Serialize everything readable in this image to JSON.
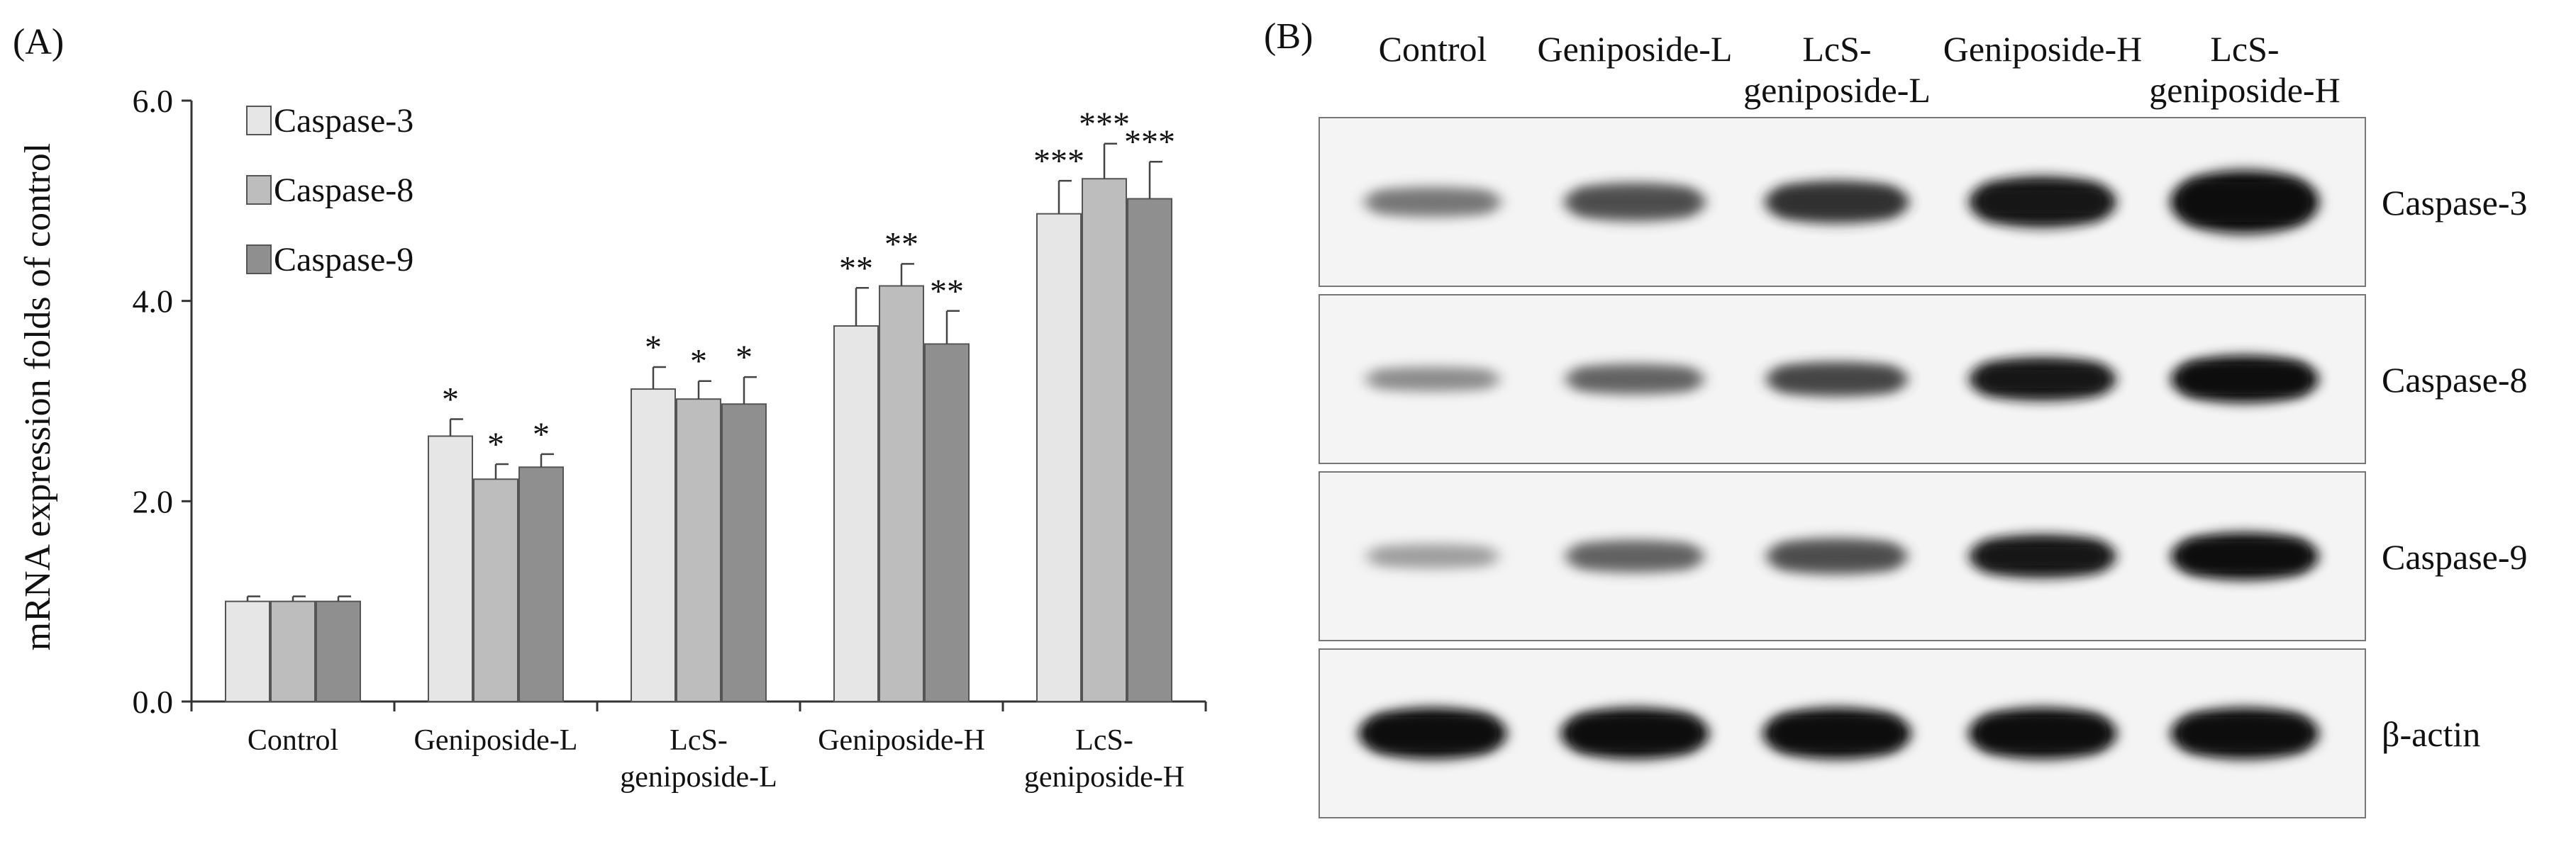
{
  "panel_a": {
    "label": "(A)",
    "chart_data": {
      "type": "bar",
      "title": "",
      "xlabel": "",
      "ylabel": "mRNA expression folds of control",
      "ylim": [
        0,
        6
      ],
      "yticks": [
        "0.0",
        "2.0",
        "4.0",
        "6.0"
      ],
      "grid": false,
      "legend_position": "top-left",
      "categories": [
        [
          "Control"
        ],
        [
          "Geniposide-L"
        ],
        [
          "LcS-",
          "geniposide-L"
        ],
        [
          "Geniposide-H"
        ],
        [
          "LcS-",
          "geniposide-H"
        ]
      ],
      "series": [
        {
          "name": "Caspase-3",
          "color": "#e6e6e6",
          "values": [
            1.0,
            2.65,
            3.12,
            3.75,
            4.87
          ],
          "errors": [
            0.05,
            0.17,
            0.22,
            0.38,
            0.33
          ],
          "significance": [
            "",
            "*",
            "*",
            "**",
            "***"
          ]
        },
        {
          "name": "Caspase-8",
          "color": "#bdbdbd",
          "values": [
            1.0,
            2.22,
            3.02,
            4.15,
            5.22
          ],
          "errors": [
            0.05,
            0.15,
            0.18,
            0.22,
            0.35
          ],
          "significance": [
            "",
            "*",
            "*",
            "**",
            "***"
          ]
        },
        {
          "name": "Caspase-9",
          "color": "#8f8f8f",
          "values": [
            1.0,
            2.34,
            2.97,
            3.57,
            5.02
          ],
          "errors": [
            0.05,
            0.13,
            0.27,
            0.33,
            0.37
          ],
          "significance": [
            "",
            "*",
            "*",
            "**",
            "***"
          ]
        }
      ]
    }
  },
  "panel_b": {
    "label": "(B)",
    "lanes": [
      [
        "Control"
      ],
      [
        "Geniposide-L"
      ],
      [
        "LcS-",
        "geniposide-L"
      ],
      [
        "Geniposide-H"
      ],
      [
        "LcS-",
        "geniposide-H"
      ]
    ],
    "blots": [
      {
        "name": "Caspase-3",
        "intensity": [
          0.45,
          0.65,
          0.8,
          0.95,
          1.0
        ],
        "thickness": [
          0.35,
          0.45,
          0.5,
          0.6,
          0.75
        ]
      },
      {
        "name": "Caspase-8",
        "intensity": [
          0.35,
          0.55,
          0.7,
          0.95,
          0.98
        ],
        "thickness": [
          0.28,
          0.35,
          0.4,
          0.5,
          0.55
        ]
      },
      {
        "name": "Caspase-9",
        "intensity": [
          0.25,
          0.55,
          0.65,
          0.95,
          0.98
        ],
        "thickness": [
          0.28,
          0.38,
          0.42,
          0.5,
          0.55
        ]
      },
      {
        "name": "β-actin",
        "intensity": [
          1.0,
          1.0,
          1.0,
          1.0,
          1.0
        ],
        "thickness": [
          0.6,
          0.6,
          0.6,
          0.6,
          0.6
        ]
      }
    ]
  }
}
